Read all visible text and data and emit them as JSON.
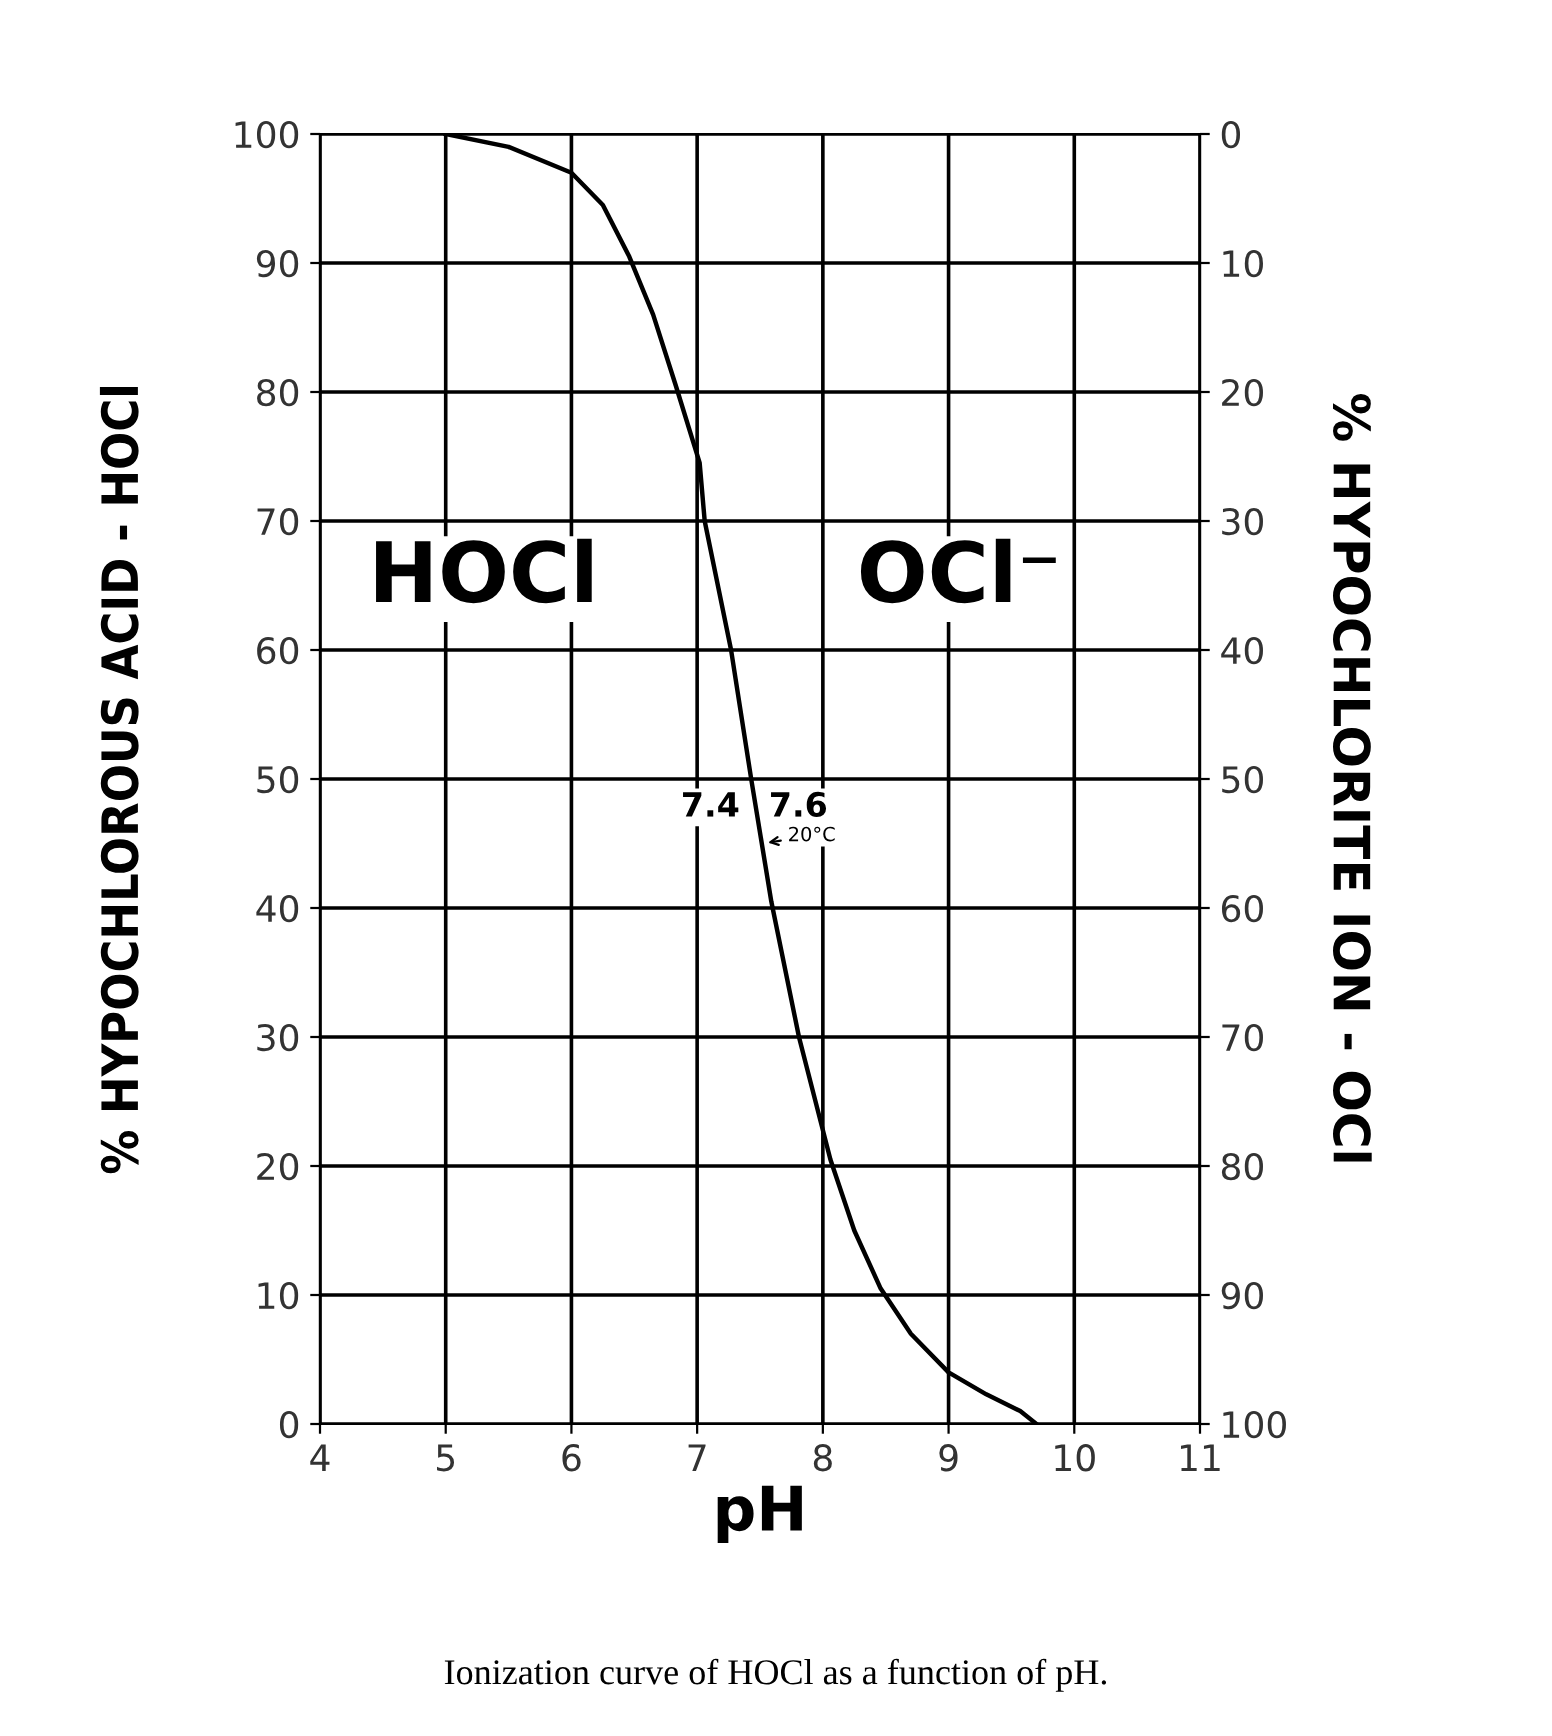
{
  "chart_data": {
    "type": "line",
    "xlabel": "pH",
    "ylabel": "% HYPOCHLOROUS ACID - HOCl",
    "y2label": "% HYPOCHLORITE ION - OCl",
    "series": [
      {
        "color": "#000000",
        "x": [
          5.0,
          5.5,
          6.0,
          6.25,
          6.46,
          6.65,
          6.83,
          7.02,
          7.06,
          7.27,
          7.43,
          7.59,
          7.81,
          8.06,
          8.25,
          8.46,
          8.7,
          9.0,
          9.3,
          9.57,
          9.7
        ],
        "values": [
          100,
          99,
          97,
          94.5,
          90.5,
          86,
          80.5,
          74.5,
          70,
          60,
          50,
          40.5,
          30,
          20.5,
          15,
          10.5,
          7,
          4,
          2.3,
          1,
          0
        ]
      }
    ],
    "xlim": [
      4,
      11
    ],
    "xticks": [
      4,
      5,
      6,
      7,
      8,
      9,
      10,
      11
    ],
    "ylim": [
      0,
      100
    ],
    "yticks": [
      0,
      10,
      20,
      30,
      40,
      50,
      60,
      70,
      80,
      90,
      100
    ],
    "y2lim": [
      100,
      0
    ],
    "y2ticks": [
      0,
      10,
      20,
      30,
      40,
      50,
      60,
      70,
      80,
      90,
      100
    ],
    "grid": true,
    "marker": "none",
    "line_style": "solid",
    "annotations": [
      "HOCl",
      "OCl⁻",
      "7.4",
      "7.6",
      {
        "text": "20°C",
        "x": 7.52,
        "y": 45
      },
      "Ionization curve of HOCl as a function of pH."
    ]
  }
}
